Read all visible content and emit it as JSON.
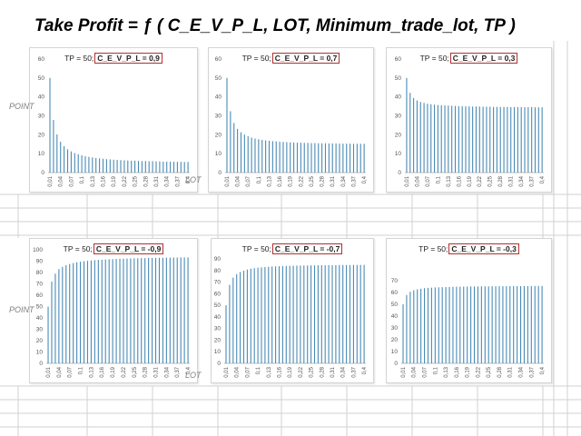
{
  "title": "Take Profit = ƒ ( C_E_V_P_L, LOT, Minimum_trade_lot, TP )",
  "side_labels": {
    "point_top": "POINT",
    "lot_top": "LOT",
    "point_bottom": "POINT",
    "lot_bottom": "LOT"
  },
  "colors": {
    "bar": "#4a8bb5",
    "box_border": "#b03030",
    "grid": "#d0d0d0"
  },
  "chart_data": [
    {
      "type": "bar",
      "title_prefix": "TP = 50;",
      "title_value": "C_E_V_P_L = 0,9",
      "ylim": [
        0,
        60
      ],
      "yticks": [
        0,
        10,
        20,
        30,
        40,
        50,
        60
      ],
      "xticks": [
        "0,01",
        "0,04",
        "0,07",
        "0,1",
        "0,13",
        "0,16",
        "0,19",
        "0,22",
        "0,25",
        "0,28",
        "0,31",
        "0,34",
        "0,37",
        "0,4"
      ],
      "values": [
        50,
        27.8,
        20.2,
        16.3,
        13.9,
        12.3,
        11.2,
        10.3,
        9.7,
        9.1,
        8.7,
        8.3,
        8,
        7.7,
        7.5,
        7.3,
        7.1,
        7,
        6.8,
        6.7,
        6.6,
        6.5,
        6.4,
        6.3,
        6.3,
        6.2,
        6.1,
        6.1,
        6,
        6,
        5.9,
        5.9,
        5.8,
        5.8,
        5.8,
        5.7,
        5.7,
        5.7,
        5.6,
        5.6
      ]
    },
    {
      "type": "bar",
      "title_prefix": "TP = 50;",
      "title_value": "C_E_V_P_L = 0,7",
      "ylim": [
        0,
        60
      ],
      "yticks": [
        0,
        10,
        20,
        30,
        40,
        50,
        60
      ],
      "xticks": [
        "0,01",
        "0,04",
        "0,07",
        "0,1",
        "0,13",
        "0,16",
        "0,19",
        "0,22",
        "0,25",
        "0,28",
        "0,31",
        "0,34",
        "0,37",
        "0,4"
      ],
      "values": [
        50,
        32.4,
        26.2,
        23.1,
        21.3,
        20.1,
        19.2,
        18.5,
        18,
        17.6,
        17.3,
        17,
        16.8,
        16.6,
        16.5,
        16.3,
        16.2,
        16.1,
        16,
        15.9,
        15.8,
        15.8,
        15.7,
        15.7,
        15.6,
        15.6,
        15.5,
        15.5,
        15.5,
        15.4,
        15.4,
        15.4,
        15.3,
        15.3,
        15.3,
        15.3,
        15.2,
        15.2,
        15.2,
        15.2
      ]
    },
    {
      "type": "bar",
      "title_prefix": "TP = 50;",
      "title_value": "C_E_V_P_L = 0,3",
      "ylim": [
        0,
        60
      ],
      "yticks": [
        0,
        10,
        20,
        30,
        40,
        50,
        60
      ],
      "xticks": [
        "0,01",
        "0,04",
        "0,07",
        "0,1",
        "0,13",
        "0,16",
        "0,19",
        "0,22",
        "0,25",
        "0,28",
        "0,31",
        "0,34",
        "0,37",
        "0,4"
      ],
      "values": [
        50,
        42.1,
        39.4,
        38.1,
        37.3,
        36.8,
        36.4,
        36.1,
        35.9,
        35.7,
        35.6,
        35.5,
        35.4,
        35.3,
        35.2,
        35.1,
        35.1,
        35,
        35,
        34.9,
        34.9,
        34.9,
        34.8,
        34.8,
        34.8,
        34.7,
        34.7,
        34.7,
        34.7,
        34.7,
        34.6,
        34.6,
        34.6,
        34.6,
        34.6,
        34.6,
        34.6,
        34.5,
        34.5,
        34.5
      ]
    },
    {
      "type": "bar",
      "title_prefix": "TP = 50;",
      "title_value": "C_E_V_P_L = -0,9",
      "ylim": [
        0,
        100
      ],
      "yticks": [
        0,
        10,
        20,
        30,
        40,
        50,
        60,
        70,
        80,
        90,
        100
      ],
      "xticks": [
        "0,01",
        "0,04",
        "0,07",
        "0,1",
        "0,13",
        "0,16",
        "0,19",
        "0,22",
        "0,25",
        "0,28",
        "0,31",
        "0,34",
        "0,37",
        "0,4"
      ],
      "values": [
        50,
        72,
        79,
        83,
        85,
        86.5,
        87.5,
        88.3,
        89,
        89.5,
        90,
        90.3,
        90.6,
        90.9,
        91.1,
        91.3,
        91.5,
        91.7,
        91.8,
        92,
        92.1,
        92.2,
        92.3,
        92.4,
        92.5,
        92.6,
        92.7,
        92.7,
        92.8,
        92.9,
        92.9,
        93,
        93,
        93.1,
        93.1,
        93.2,
        93.2,
        93.3,
        93.3,
        93.3
      ]
    },
    {
      "type": "bar",
      "title_prefix": "TP = 50;",
      "title_value": "C_E_V_P_L = -0,7",
      "ylim": [
        0,
        90
      ],
      "yticks": [
        0,
        10,
        20,
        30,
        40,
        50,
        60,
        70,
        80,
        90
      ],
      "xticks": [
        "0,01",
        "0,04",
        "0,07",
        "0,1",
        "0,13",
        "0,16",
        "0,19",
        "0,22",
        "0,25",
        "0,28",
        "0,31",
        "0,34",
        "0,37",
        "0,4"
      ],
      "values": [
        50,
        67.6,
        73.8,
        76.9,
        78.7,
        79.9,
        80.8,
        81.5,
        82,
        82.4,
        82.7,
        83,
        83.2,
        83.4,
        83.5,
        83.7,
        83.8,
        83.9,
        84,
        84.1,
        84.2,
        84.2,
        84.3,
        84.3,
        84.4,
        84.4,
        84.5,
        84.5,
        84.5,
        84.6,
        84.6,
        84.6,
        84.7,
        84.7,
        84.7,
        84.7,
        84.8,
        84.8,
        84.8,
        84.8
      ]
    },
    {
      "type": "bar",
      "title_prefix": "TP = 50;",
      "title_value": "C_E_V_P_L = -0,3",
      "ylim": [
        0,
        70
      ],
      "yticks": [
        0,
        10,
        20,
        30,
        40,
        50,
        60,
        70
      ],
      "xticks": [
        "0,01",
        "0,04",
        "0,07",
        "0,1",
        "0,13",
        "0,16",
        "0,19",
        "0,22",
        "0,25",
        "0,28",
        "0,31",
        "0,34",
        "0,37",
        "0,4"
      ],
      "values": [
        50,
        57.9,
        60.6,
        61.9,
        62.7,
        63.2,
        63.6,
        63.9,
        64.1,
        64.3,
        64.4,
        64.5,
        64.6,
        64.7,
        64.8,
        64.9,
        64.9,
        65,
        65,
        65.1,
        65.1,
        65.1,
        65.2,
        65.2,
        65.2,
        65.3,
        65.3,
        65.3,
        65.3,
        65.3,
        65.4,
        65.4,
        65.4,
        65.4,
        65.4,
        65.4,
        65.4,
        65.5,
        65.5,
        65.5
      ]
    }
  ]
}
